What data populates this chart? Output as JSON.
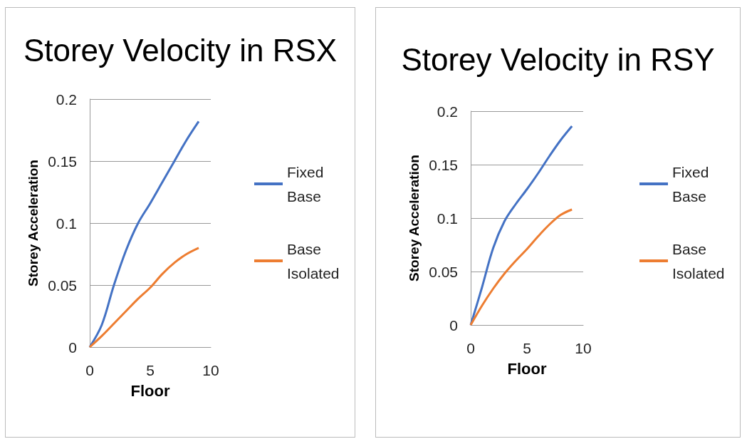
{
  "chart_data": [
    {
      "type": "line",
      "title": "Storey Velocity in RSX",
      "xlabel": "Floor",
      "ylabel": "Storey Acceleration",
      "x": [
        0,
        1,
        2,
        3,
        4,
        5,
        6,
        7,
        8,
        9
      ],
      "series": [
        {
          "name": "Fixed Base",
          "color": "#4472c4",
          "values": [
            0,
            0.018,
            0.05,
            0.078,
            0.1,
            0.116,
            0.133,
            0.15,
            0.167,
            0.182
          ]
        },
        {
          "name": "Base Isolated",
          "color": "#ed7d31",
          "values": [
            0,
            0.009,
            0.019,
            0.029,
            0.039,
            0.048,
            0.059,
            0.068,
            0.075,
            0.08
          ]
        }
      ],
      "xlim": [
        0,
        10
      ],
      "xticks": [
        0,
        5,
        10
      ],
      "ylim": [
        0,
        0.2
      ],
      "yticks": [
        0,
        0.05,
        0.1,
        0.15,
        0.2
      ],
      "grid": "y",
      "legend": "right",
      "marker": "none",
      "line_style": "solid"
    },
    {
      "type": "line",
      "title": "Storey Velocity in RSY",
      "xlabel": "Floor",
      "ylabel": "Storey Acceleration",
      "x": [
        0,
        1,
        2,
        3,
        4,
        5,
        6,
        7,
        8,
        9
      ],
      "series": [
        {
          "name": "Fixed Base",
          "color": "#4472c4",
          "values": [
            0,
            0.035,
            0.072,
            0.097,
            0.113,
            0.127,
            0.142,
            0.158,
            0.173,
            0.186
          ]
        },
        {
          "name": "Base Isolated",
          "color": "#ed7d31",
          "values": [
            0,
            0.018,
            0.034,
            0.048,
            0.06,
            0.071,
            0.083,
            0.094,
            0.103,
            0.108
          ]
        }
      ],
      "xlim": [
        0,
        10
      ],
      "xticks": [
        0,
        5,
        10
      ],
      "ylim": [
        0,
        0.2
      ],
      "yticks": [
        0,
        0.05,
        0.1,
        0.15,
        0.2
      ],
      "grid": "y",
      "legend": "right",
      "marker": "none",
      "line_style": "solid"
    }
  ]
}
